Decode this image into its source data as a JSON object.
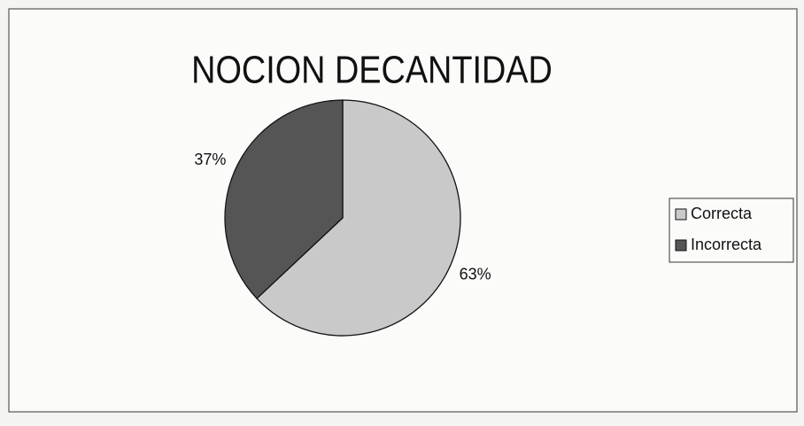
{
  "chart_data": {
    "type": "pie",
    "title": "NOCION DECANTIDAD",
    "categories": [
      "Correcta",
      "Incorrecta"
    ],
    "values": [
      63,
      37
    ],
    "value_labels": [
      "63%",
      "37%"
    ],
    "colors": [
      "#c9c9c9",
      "#555555"
    ],
    "legend": "right"
  }
}
